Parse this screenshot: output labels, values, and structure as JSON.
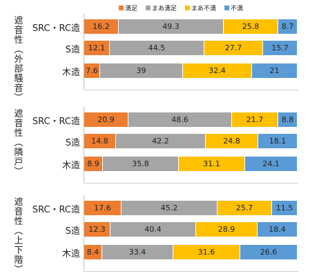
{
  "chart_data": {
    "type": "bar",
    "orientation": "horizontal",
    "stacked": true,
    "series_names": [
      "満足",
      "まあ満足",
      "まあ不満",
      "不満"
    ],
    "colors": [
      "#ED7D31",
      "#A5A5A5",
      "#FFC000",
      "#5B9BD5"
    ],
    "legend_position": "top",
    "panels": [
      {
        "label": "遮\n音\n性\n︵\n外\n部\n騒\n音\n︶",
        "rows": [
          {
            "category": "SRC・RC造",
            "values": [
              16.2,
              49.3,
              25.8,
              8.7
            ]
          },
          {
            "category": "S造",
            "values": [
              12.1,
              44.5,
              27.7,
              15.7
            ]
          },
          {
            "category": "木造",
            "values": [
              7.6,
              39,
              32.4,
              21
            ]
          }
        ]
      },
      {
        "label": "遮\n音\n性\n︵\n隣\n戸\n︶",
        "rows": [
          {
            "category": "SRC・RC造",
            "values": [
              20.9,
              48.6,
              21.7,
              8.8
            ]
          },
          {
            "category": "S造",
            "values": [
              14.8,
              42.2,
              24.8,
              18.1
            ]
          },
          {
            "category": "木造",
            "values": [
              8.9,
              35.8,
              31.1,
              24.1
            ]
          }
        ]
      },
      {
        "label": "遮\n音\n性\n︵\n上\n下\n階\n︶",
        "rows": [
          {
            "category": "SRC・RC造",
            "values": [
              17.6,
              45.2,
              25.7,
              11.5
            ]
          },
          {
            "category": "S造",
            "values": [
              12.3,
              40.4,
              28.9,
              18.4
            ]
          },
          {
            "category": "木造",
            "values": [
              8.4,
              33.4,
              31.6,
              26.6
            ]
          }
        ]
      }
    ]
  }
}
